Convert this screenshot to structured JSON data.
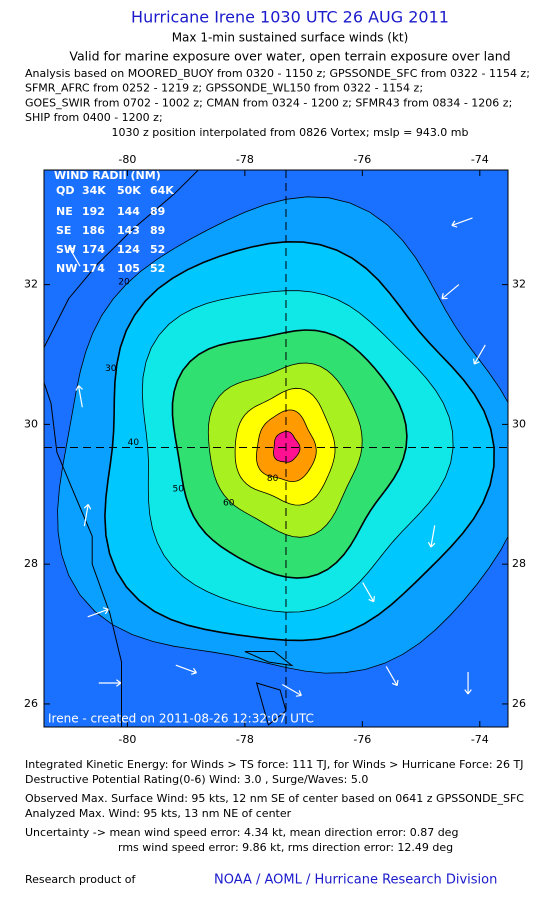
{
  "chart_data": {
    "type": "map",
    "title": "Hurricane Irene 1030 UTC 26 AUG 2011",
    "subtitle": "Max 1-min sustained surface winds (kt)",
    "validity": "Valid for marine exposure over water, open terrain exposure over land",
    "analysis_lines": [
      "Analysis based on MOORED_BUOY from 0320 - 1150 z; GPSSONDE_SFC from 0322 - 1154 z;",
      "SFMR_AFRC from 0252 - 1219 z; GPSSONDE_WL150 from 0322 - 1154 z;",
      "GOES_SWIR from 0702 - 1002 z; CMAN from 0324 - 1200 z; SFMR43 from 0834 - 1206 z;",
      "SHIP from 0400 - 1200 z;"
    ],
    "position_note": "1030 z position interpolated from 0826 Vortex; mslp = 943.0 mb",
    "xlim": [
      -81.42,
      -73.52
    ],
    "ylim": [
      25.67,
      33.64
    ],
    "xticks": [
      -80,
      -78,
      -76,
      -74
    ],
    "yticks": [
      26,
      28,
      30,
      32
    ],
    "center": [
      -77.3,
      29.67
    ],
    "contour_levels": [
      {
        "value": 20,
        "color": "#0aa0ff"
      },
      {
        "value": 30,
        "color": "#00c8ff"
      },
      {
        "value": 40,
        "color": "#10e8e8"
      },
      {
        "value": 50,
        "color": "#30e070"
      },
      {
        "value": 60,
        "color": "#a8f020"
      },
      {
        "value": 70,
        "color": "#ffff00"
      },
      {
        "value": 80,
        "color": "#ff9a00"
      },
      {
        "value": 90,
        "color": "#ff1090"
      }
    ],
    "background_color": "#1a70ff",
    "contour_labels": [
      20,
      30,
      40,
      50,
      60,
      80
    ],
    "wind_radii": {
      "title": "WIND RADII (NM)",
      "columns": [
        "QD",
        "34K",
        "50K",
        "64K"
      ],
      "rows": [
        [
          "NE",
          "192",
          "144",
          "89"
        ],
        [
          "SE",
          "186",
          "143",
          "89"
        ],
        [
          "SW",
          "174",
          "124",
          "52"
        ],
        [
          "NW",
          "174",
          "105",
          "52"
        ]
      ]
    },
    "credit": "Irene - created on 2011-08-26 12:32:07 UTC",
    "footer_lines": [
      "Integrated Kinetic Energy:  for Winds > TS force: 111 TJ,  for Winds > Hurricane Force: 26 TJ",
      "Destructive Potential Rating(0-6)   Wind: 3.0 , Surge/Waves: 5.0",
      "Observed Max. Surface Wind: 95 kts, 12 nm SE of center based on 0641 z GPSSONDE_SFC",
      "Analyzed Max. Wind: 95 kts, 13 nm NE of center",
      "Uncertainty -> mean wind speed error: 4.34 kt,   mean direction error: 0.87 deg",
      "rms wind speed error: 9.86 kt,   rms direction error: 12.49 deg"
    ],
    "research_label": "Research product of",
    "organization": "NOAA / AOML / Hurricane Research Division"
  }
}
